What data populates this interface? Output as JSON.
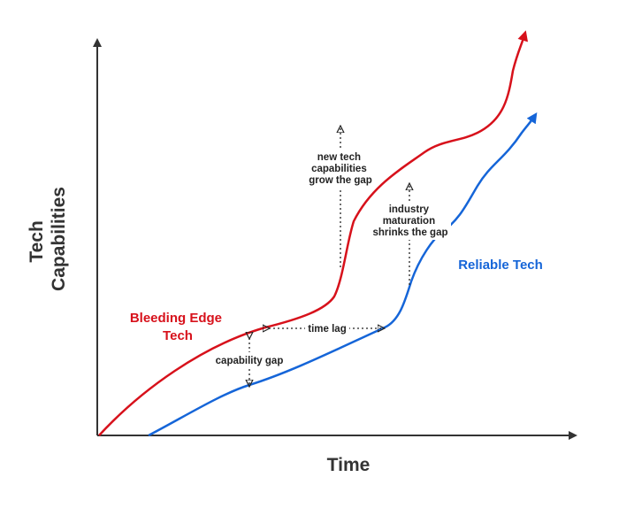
{
  "axes": {
    "y_title_line1": "Tech",
    "y_title_line2": "Capabilities",
    "x_title": "Time"
  },
  "series": {
    "bleeding_edge": {
      "line1": "Bleeding Edge",
      "line2": "Tech",
      "color": "#d7111b"
    },
    "reliable": {
      "label": "Reliable Tech",
      "color": "#1565d8"
    }
  },
  "annotations": {
    "capability_gap": "capability gap",
    "time_lag": "time lag",
    "grow_gap": [
      "new tech",
      "capabilities",
      "grow the gap"
    ],
    "shrink_gap": [
      "industry",
      "maturation",
      "shrinks the gap"
    ]
  },
  "colors": {
    "axis": "#333333",
    "annotation": "#222222"
  }
}
